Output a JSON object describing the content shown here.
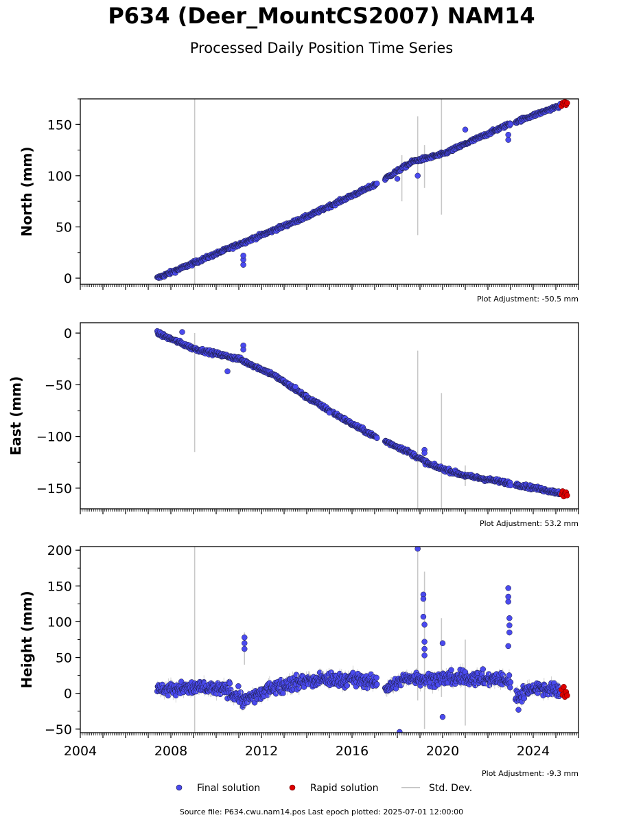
{
  "title": "P634 (Deer_MountCS2007) NAM14",
  "subtitle": "Processed Daily Position Time Series",
  "source_line": "Source file: P634.cwu.nam14.pos  Last epoch plotted: 2025-07-01 12:00:00",
  "colors": {
    "final": "#4a4aee",
    "rapid": "#dd0000",
    "stddev": "#c8c8c8",
    "marker_edge": "#1a1a3a"
  },
  "chart_data": [
    {
      "type": "scatter",
      "ylabel": "North (mm)",
      "ylim": [
        -6,
        175
      ],
      "xlim": [
        2004.0,
        2026.0
      ],
      "yticks": [
        0,
        50,
        100,
        150
      ],
      "ytick_labels": [
        "0",
        "50",
        "100",
        "150"
      ],
      "adjustment": "Plot Adjustment: -50.5 mm",
      "trend": [
        [
          2007.4,
          0
        ],
        [
          2011.0,
          33
        ],
        [
          2014.0,
          60
        ],
        [
          2017.0,
          91
        ],
        [
          2018.7,
          114
        ],
        [
          2020.0,
          121
        ],
        [
          2022.9,
          150
        ],
        [
          2025.5,
          171
        ]
      ],
      "noise": 1.6,
      "outliers": [
        [
          2011.2,
          13
        ],
        [
          2011.2,
          18
        ],
        [
          2011.2,
          22
        ],
        [
          2018.0,
          97
        ],
        [
          2018.9,
          100
        ],
        [
          2021.0,
          145
        ],
        [
          2022.9,
          135
        ],
        [
          2022.9,
          140
        ]
      ],
      "stddev_bars": [
        [
          2009.05,
          -6,
          175
        ],
        [
          2018.2,
          75,
          120
        ],
        [
          2018.9,
          42,
          158
        ],
        [
          2019.2,
          88,
          130
        ],
        [
          2019.95,
          62,
          175
        ]
      ],
      "rapid_points": [
        [
          2025.25,
          168
        ],
        [
          2025.3,
          171
        ],
        [
          2025.35,
          170
        ],
        [
          2025.4,
          172
        ],
        [
          2025.45,
          169
        ],
        [
          2025.5,
          171
        ]
      ]
    },
    {
      "type": "scatter",
      "ylabel": "East (mm)",
      "ylim": [
        -170,
        10
      ],
      "xlim": [
        2004.0,
        2026.0
      ],
      "yticks": [
        0,
        -50,
        -100,
        -150
      ],
      "ytick_labels": [
        "0",
        "−50",
        "−100",
        "−150"
      ],
      "adjustment": "Plot Adjustment: 53.2 mm",
      "trend": [
        [
          2007.4,
          0
        ],
        [
          2009.0,
          -15
        ],
        [
          2011.0,
          -25
        ],
        [
          2012.5,
          -40
        ],
        [
          2014.0,
          -62
        ],
        [
          2016.0,
          -88
        ],
        [
          2017.0,
          -100
        ],
        [
          2018.5,
          -115
        ],
        [
          2019.5,
          -128
        ],
        [
          2021.0,
          -138
        ],
        [
          2022.9,
          -145
        ],
        [
          2025.5,
          -156
        ]
      ],
      "noise": 1.8,
      "outliers": [
        [
          2011.2,
          -12
        ],
        [
          2011.2,
          -16
        ],
        [
          2008.5,
          1
        ],
        [
          2010.5,
          -37
        ],
        [
          2013.5,
          -52
        ],
        [
          2015.0,
          -77
        ],
        [
          2019.2,
          -113
        ],
        [
          2019.2,
          -116
        ]
      ],
      "stddev_bars": [
        [
          2009.05,
          -115,
          0
        ],
        [
          2018.9,
          -170,
          -17
        ],
        [
          2019.95,
          -170,
          -58
        ],
        [
          2021.0,
          -148,
          -128
        ]
      ],
      "rapid_points": [
        [
          2025.25,
          -156
        ],
        [
          2025.3,
          -153
        ],
        [
          2025.35,
          -158
        ],
        [
          2025.4,
          -155
        ],
        [
          2025.45,
          -154
        ],
        [
          2025.5,
          -157
        ]
      ]
    },
    {
      "type": "scatter",
      "ylabel": "Height (mm)",
      "ylim": [
        -55,
        205
      ],
      "xlim": [
        2004.0,
        2026.0
      ],
      "yticks": [
        -50,
        0,
        50,
        100,
        150,
        200
      ],
      "ytick_labels": [
        "−50",
        "0",
        "50",
        "100",
        "150",
        "200"
      ],
      "xticks": [
        2004,
        2008,
        2012,
        2016,
        2020,
        2024
      ],
      "xtick_labels": [
        "2004",
        "2008",
        "2012",
        "2016",
        "2020",
        "2024"
      ],
      "adjustment": "Plot Adjustment: -9.3 mm",
      "trend": [
        [
          2007.4,
          5
        ],
        [
          2009.0,
          8
        ],
        [
          2010.5,
          5
        ],
        [
          2011.3,
          -10
        ],
        [
          2012.5,
          8
        ],
        [
          2014.0,
          18
        ],
        [
          2016.0,
          20
        ],
        [
          2017.0,
          15
        ],
        [
          2017.6,
          8
        ],
        [
          2018.5,
          22
        ],
        [
          2019.5,
          20
        ],
        [
          2021.0,
          22
        ],
        [
          2022.9,
          18
        ],
        [
          2023.3,
          -5
        ],
        [
          2024.0,
          8
        ],
        [
          2025.5,
          2
        ]
      ],
      "noise": 9,
      "outliers": [
        [
          2011.25,
          78
        ],
        [
          2011.25,
          70
        ],
        [
          2011.25,
          62
        ],
        [
          2018.9,
          202
        ],
        [
          2019.15,
          138
        ],
        [
          2019.15,
          132
        ],
        [
          2019.15,
          107
        ],
        [
          2019.2,
          96
        ],
        [
          2019.2,
          72
        ],
        [
          2019.2,
          62
        ],
        [
          2019.2,
          53
        ],
        [
          2020.0,
          70
        ],
        [
          2020.0,
          -33
        ],
        [
          2018.1,
          -54
        ],
        [
          2022.9,
          147
        ],
        [
          2022.9,
          135
        ],
        [
          2022.9,
          128
        ],
        [
          2022.95,
          105
        ],
        [
          2022.95,
          95
        ],
        [
          2022.95,
          85
        ],
        [
          2022.9,
          66
        ],
        [
          2023.35,
          -23
        ]
      ],
      "stddev_bars": [
        [
          2009.05,
          -55,
          205
        ],
        [
          2018.9,
          -10,
          205
        ],
        [
          2019.2,
          -50,
          170
        ],
        [
          2019.95,
          -5,
          105
        ],
        [
          2021.0,
          -45,
          75
        ],
        [
          2011.25,
          40,
          85
        ]
      ],
      "rapid_points": [
        [
          2025.25,
          5
        ],
        [
          2025.3,
          -2
        ],
        [
          2025.35,
          9
        ],
        [
          2025.4,
          -5
        ],
        [
          2025.45,
          2
        ],
        [
          2025.5,
          -3
        ]
      ]
    }
  ],
  "legend": {
    "final_label": "Final solution",
    "rapid_label": "Rapid solution",
    "stddev_label": "Std. Dev."
  }
}
